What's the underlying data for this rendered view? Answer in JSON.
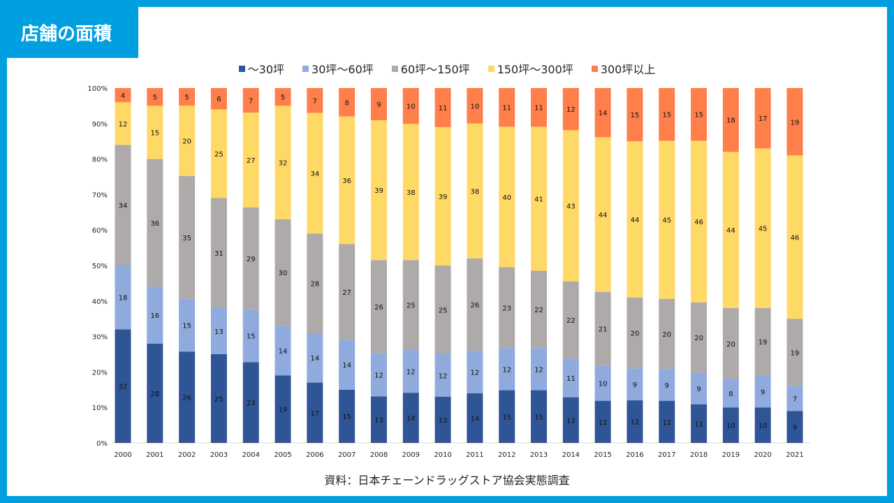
{
  "header": {
    "title": "店舗の面積"
  },
  "source_note": "資料：日本チェーンドラッグストア協会実態調査",
  "chart_data": {
    "type": "bar",
    "stacked": true,
    "percent_stacked": true,
    "title": "店舗の面積",
    "xlabel": "",
    "ylabel": "",
    "ylim": [
      0,
      100
    ],
    "yticks": [
      "0%",
      "10%",
      "20%",
      "30%",
      "40%",
      "50%",
      "60%",
      "70%",
      "80%",
      "90%",
      "100%"
    ],
    "legend_position": "top",
    "grid": false,
    "categories": [
      "2000",
      "2001",
      "2002",
      "2003",
      "2004",
      "2005",
      "2006",
      "2007",
      "2008",
      "2009",
      "2010",
      "2011",
      "2012",
      "2013",
      "2014",
      "2015",
      "2016",
      "2017",
      "2018",
      "2019",
      "2020",
      "2021"
    ],
    "series": [
      {
        "name": "〜30坪",
        "color": "#2f5597",
        "values": [
          32,
          28,
          26,
          25,
          23,
          19,
          17,
          15,
          13,
          14,
          13,
          14,
          15,
          15,
          13,
          12,
          12,
          12,
          11,
          10,
          10,
          9
        ]
      },
      {
        "name": "30坪〜60坪",
        "color": "#8faadc",
        "values": [
          18,
          16,
          15,
          13,
          15,
          14,
          14,
          14,
          12,
          12,
          12,
          12,
          12,
          12,
          11,
          10,
          9,
          9,
          9,
          8,
          9,
          7
        ]
      },
      {
        "name": "60坪〜150坪",
        "color": "#aeaaaa",
        "values": [
          34,
          36,
          35,
          31,
          29,
          30,
          28,
          27,
          26,
          25,
          25,
          26,
          23,
          22,
          22,
          21,
          20,
          20,
          20,
          20,
          19,
          19
        ]
      },
      {
        "name": "150坪〜300坪",
        "color": "#ffd966",
        "values": [
          12,
          15,
          20,
          25,
          27,
          32,
          34,
          36,
          39,
          38,
          39,
          38,
          40,
          41,
          43,
          44,
          44,
          45,
          46,
          44,
          45,
          46
        ]
      },
      {
        "name": "300坪以上",
        "color": "#ff7f4a",
        "values": [
          4,
          5,
          5,
          6,
          7,
          5,
          7,
          8,
          9,
          10,
          11,
          10,
          11,
          11,
          12,
          14,
          15,
          15,
          15,
          18,
          17,
          19
        ]
      }
    ]
  }
}
